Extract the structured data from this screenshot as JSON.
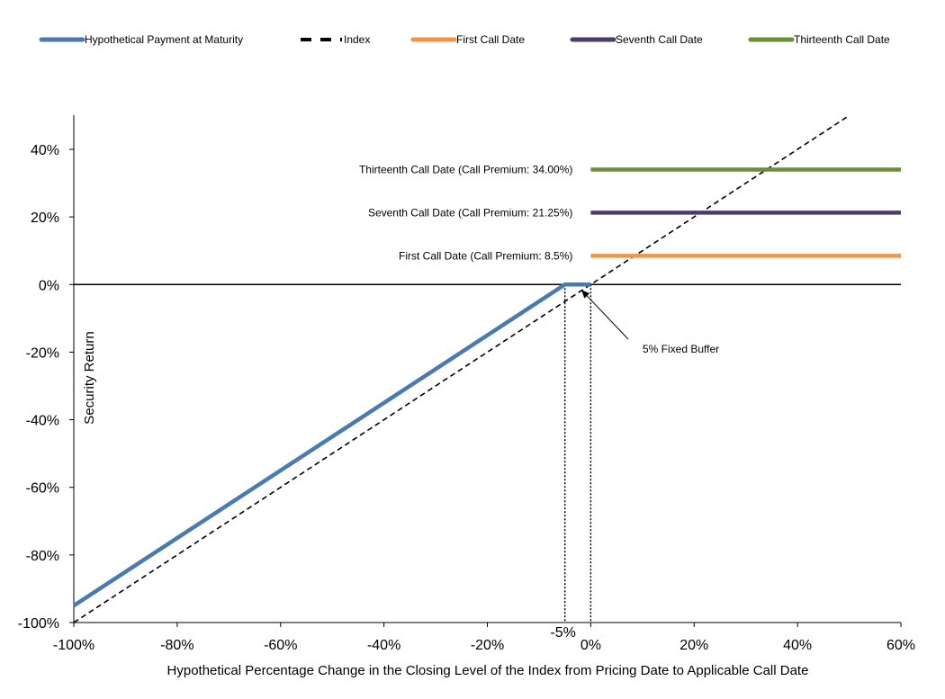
{
  "chart_data": {
    "type": "line",
    "title": "",
    "xlabel": "Hypothetical Percentage Change in the Closing Level of the Index from Pricing Date to Applicable Call Date",
    "ylabel": "Security Return",
    "xlim": [
      -100,
      60
    ],
    "ylim": [
      -100,
      50
    ],
    "x_ticks": [
      -100,
      -80,
      -60,
      -40,
      -20,
      0,
      20,
      40,
      60
    ],
    "x_tick_labels": [
      "-100%",
      "-80%",
      "-60%",
      "-40%",
      "-20%",
      "0%",
      "20%",
      "40%",
      "60%"
    ],
    "extra_x_tick": {
      "x": -5,
      "label": "-5%"
    },
    "y_ticks": [
      -100,
      -80,
      -60,
      -40,
      -20,
      0,
      20,
      40
    ],
    "y_tick_labels": [
      "-100%",
      "-80%",
      "-60%",
      "-40%",
      "-20%",
      "0%",
      "20%",
      "40%"
    ],
    "grid": false,
    "legend_position": "top",
    "series": [
      {
        "name": "Hypothetical Payment at Maturity",
        "color": "#4a7ab0",
        "style": "solid",
        "x": [
          -100,
          -5,
          0
        ],
        "y": [
          -95,
          0,
          0
        ]
      },
      {
        "name": "Index",
        "color": "#000000",
        "style": "dashed",
        "x": [
          -100,
          50
        ],
        "y": [
          -100,
          50
        ]
      },
      {
        "name": "First Call Date",
        "color": "#f0944a",
        "style": "solid",
        "x": [
          0,
          60
        ],
        "y": [
          8.5,
          8.5
        ]
      },
      {
        "name": "Seventh Call Date",
        "color": "#4b3c6a",
        "style": "solid",
        "x": [
          0,
          60
        ],
        "y": [
          21.25,
          21.25
        ]
      },
      {
        "name": "Thirteenth Call Date",
        "color": "#6b8e3a",
        "style": "solid",
        "x": [
          0,
          60
        ],
        "y": [
          34,
          34
        ]
      }
    ],
    "annotations": [
      {
        "text": "Thirteenth  Call Date (Call Premium: 34.00%)",
        "series": "Thirteenth Call Date"
      },
      {
        "text": "Seventh  Call Date (Call Premium: 21.25%)",
        "series": "Seventh Call Date"
      },
      {
        "text": "First Call Date (Call Premium: 8.5%)",
        "series": "First Call Date"
      },
      {
        "text": "5% Fixed Buffer",
        "arrow_to": {
          "x": -2.5,
          "y": 0
        }
      }
    ],
    "vertical_markers": [
      -5,
      0
    ]
  }
}
